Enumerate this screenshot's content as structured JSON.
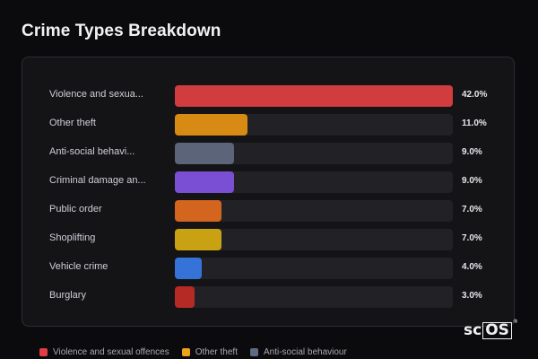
{
  "header": {
    "title": "Crime Types Breakdown"
  },
  "chart_data": {
    "type": "bar",
    "orientation": "horizontal",
    "title": "Crime Types Breakdown",
    "xlim": [
      0,
      42
    ],
    "categories": [
      "Violence and sexua...",
      "Other theft",
      "Anti-social behavi...",
      "Criminal damage an...",
      "Public order",
      "Shoplifting",
      "Vehicle crime",
      "Burglary"
    ],
    "values": [
      42.0,
      11.0,
      9.0,
      9.0,
      7.0,
      7.0,
      4.0,
      3.0
    ],
    "value_labels": [
      "42.0%",
      "11.0%",
      "9.0%",
      "9.0%",
      "7.0%",
      "7.0%",
      "4.0%",
      "3.0%"
    ],
    "colors": [
      "#d13c3f",
      "#d88b14",
      "#5b6478",
      "#7a4fd3",
      "#d4651f",
      "#c9a214",
      "#3673d8",
      "#b62a25"
    ],
    "grid": false,
    "legend_position": "bottom-left"
  },
  "legend": [
    {
      "label": "Violence and sexual offences",
      "color": "#e03e45"
    },
    {
      "label": "Other theft",
      "color": "#f0a218"
    },
    {
      "label": "Anti-social behaviour",
      "color": "#5f6b80"
    }
  ],
  "logo": {
    "prefix": "sc",
    "boxed": "OS",
    "mark": "®"
  }
}
